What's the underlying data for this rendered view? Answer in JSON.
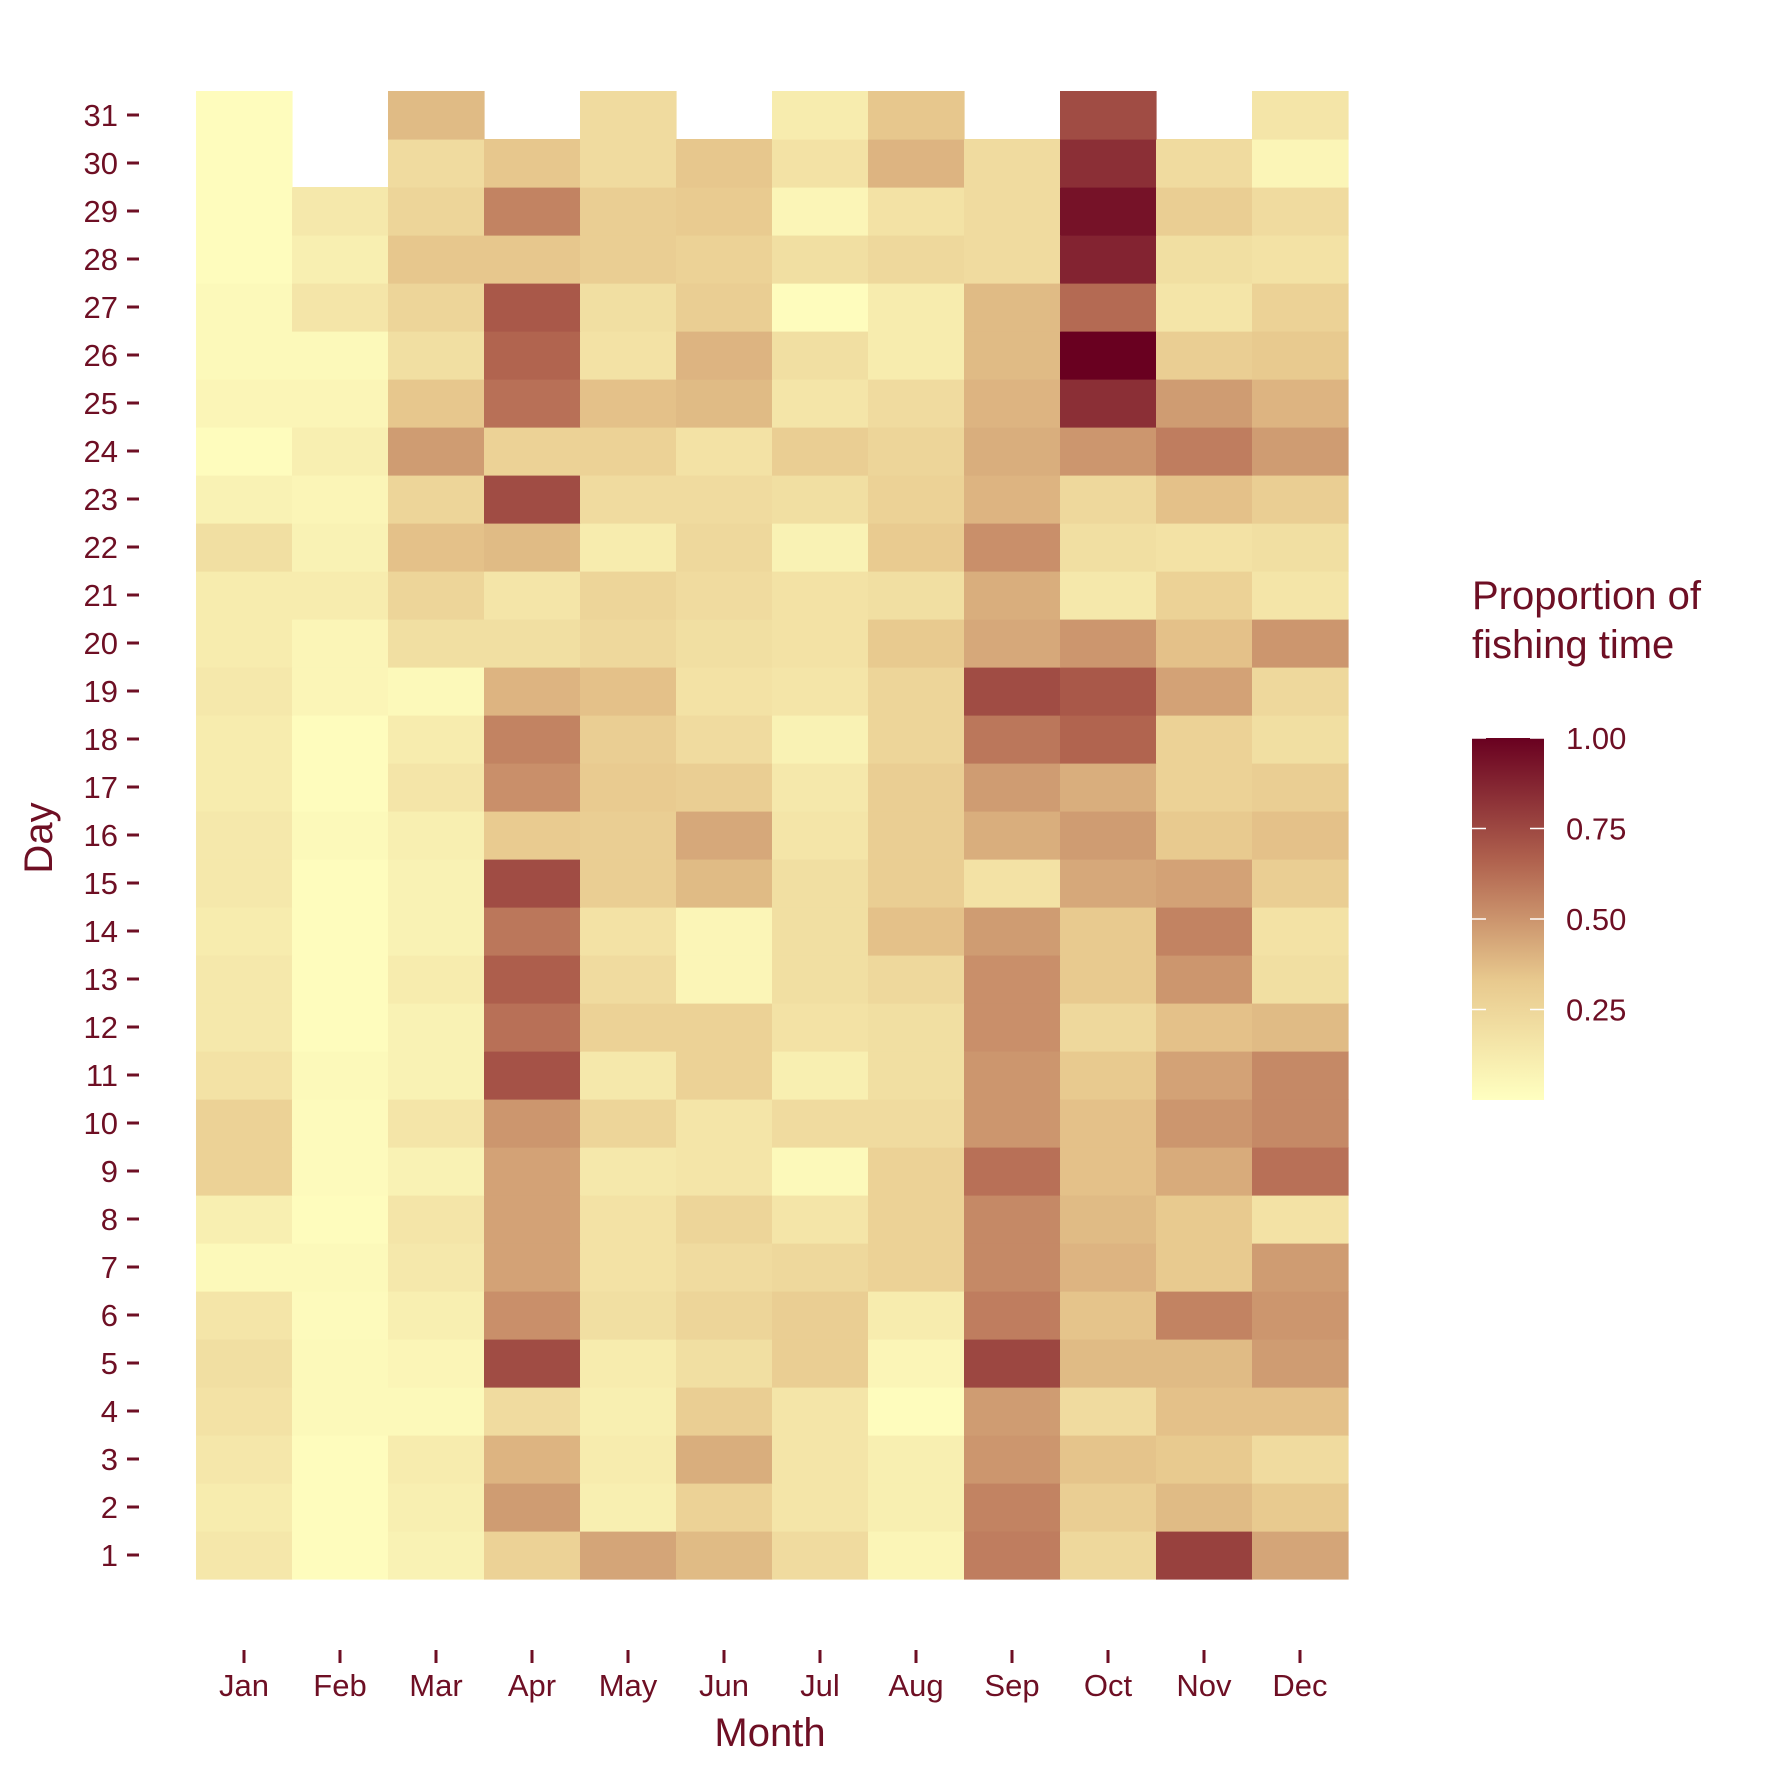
{
  "chart_data": {
    "type": "heatmap",
    "xlabel": "Month",
    "ylabel": "Day",
    "x_categories": [
      "Jan",
      "Feb",
      "Mar",
      "Apr",
      "May",
      "Jun",
      "Jul",
      "Aug",
      "Sep",
      "Oct",
      "Nov",
      "Dec"
    ],
    "y_categories": [
      "1",
      "2",
      "3",
      "4",
      "5",
      "6",
      "7",
      "8",
      "9",
      "10",
      "11",
      "12",
      "13",
      "14",
      "15",
      "16",
      "17",
      "18",
      "19",
      "20",
      "21",
      "22",
      "23",
      "24",
      "25",
      "26",
      "27",
      "28",
      "29",
      "30",
      "31"
    ],
    "legend": {
      "title_line1": "Proportion of",
      "title_line2": "fishing time",
      "ticks": [
        0.25,
        0.5,
        0.75,
        1.0
      ],
      "tick_labels": [
        "0.25",
        "0.50",
        "0.75",
        "1.00"
      ],
      "range": [
        0.0,
        1.0
      ],
      "colors": [
        "#ffffc0",
        "#e8c98e",
        "#b0624e",
        "#690020"
      ],
      "placement": "right"
    },
    "grid": false,
    "values": [
      [
        0.15,
        0.02,
        0.08,
        0.28,
        0.45,
        0.38,
        0.22,
        0.06,
        0.58,
        0.24,
        0.78,
        0.45
      ],
      [
        0.12,
        0.02,
        0.1,
        0.48,
        0.1,
        0.28,
        0.16,
        0.1,
        0.56,
        0.3,
        0.38,
        0.33
      ],
      [
        0.15,
        0.02,
        0.12,
        0.4,
        0.12,
        0.42,
        0.16,
        0.1,
        0.5,
        0.35,
        0.33,
        0.22
      ],
      [
        0.18,
        0.04,
        0.04,
        0.22,
        0.1,
        0.3,
        0.16,
        0.02,
        0.48,
        0.22,
        0.36,
        0.36
      ],
      [
        0.2,
        0.04,
        0.06,
        0.74,
        0.12,
        0.2,
        0.3,
        0.06,
        0.76,
        0.38,
        0.38,
        0.48
      ],
      [
        0.16,
        0.03,
        0.1,
        0.52,
        0.2,
        0.26,
        0.3,
        0.12,
        0.58,
        0.35,
        0.56,
        0.5
      ],
      [
        0.04,
        0.04,
        0.14,
        0.46,
        0.18,
        0.22,
        0.24,
        0.28,
        0.54,
        0.4,
        0.33,
        0.48
      ],
      [
        0.1,
        0.02,
        0.16,
        0.46,
        0.18,
        0.26,
        0.16,
        0.28,
        0.54,
        0.38,
        0.33,
        0.18
      ],
      [
        0.28,
        0.03,
        0.08,
        0.46,
        0.14,
        0.16,
        0.04,
        0.28,
        0.62,
        0.36,
        0.43,
        0.62
      ],
      [
        0.28,
        0.03,
        0.16,
        0.5,
        0.26,
        0.16,
        0.22,
        0.22,
        0.5,
        0.36,
        0.5,
        0.54
      ],
      [
        0.18,
        0.04,
        0.08,
        0.72,
        0.14,
        0.28,
        0.1,
        0.2,
        0.5,
        0.33,
        0.46,
        0.54
      ],
      [
        0.14,
        0.02,
        0.08,
        0.62,
        0.28,
        0.28,
        0.18,
        0.2,
        0.52,
        0.24,
        0.36,
        0.38
      ],
      [
        0.14,
        0.02,
        0.12,
        0.68,
        0.22,
        0.06,
        0.2,
        0.24,
        0.52,
        0.33,
        0.5,
        0.2
      ],
      [
        0.12,
        0.02,
        0.08,
        0.6,
        0.18,
        0.06,
        0.2,
        0.36,
        0.48,
        0.33,
        0.56,
        0.18
      ],
      [
        0.14,
        0.02,
        0.08,
        0.74,
        0.3,
        0.38,
        0.2,
        0.3,
        0.18,
        0.44,
        0.46,
        0.3
      ],
      [
        0.14,
        0.04,
        0.1,
        0.32,
        0.3,
        0.44,
        0.16,
        0.3,
        0.42,
        0.48,
        0.33,
        0.36
      ],
      [
        0.12,
        0.02,
        0.16,
        0.52,
        0.32,
        0.3,
        0.14,
        0.3,
        0.48,
        0.42,
        0.28,
        0.3
      ],
      [
        0.12,
        0.02,
        0.12,
        0.56,
        0.3,
        0.22,
        0.08,
        0.26,
        0.6,
        0.66,
        0.28,
        0.2
      ],
      [
        0.14,
        0.06,
        0.04,
        0.4,
        0.36,
        0.18,
        0.16,
        0.26,
        0.74,
        0.7,
        0.46,
        0.24
      ],
      [
        0.12,
        0.06,
        0.2,
        0.2,
        0.24,
        0.2,
        0.18,
        0.33,
        0.44,
        0.5,
        0.36,
        0.5
      ],
      [
        0.12,
        0.12,
        0.26,
        0.16,
        0.26,
        0.22,
        0.18,
        0.2,
        0.42,
        0.14,
        0.28,
        0.16
      ],
      [
        0.2,
        0.08,
        0.36,
        0.38,
        0.12,
        0.24,
        0.08,
        0.32,
        0.52,
        0.2,
        0.18,
        0.2
      ],
      [
        0.08,
        0.06,
        0.26,
        0.74,
        0.22,
        0.22,
        0.2,
        0.28,
        0.4,
        0.24,
        0.36,
        0.3
      ],
      [
        0.02,
        0.1,
        0.48,
        0.28,
        0.28,
        0.18,
        0.3,
        0.26,
        0.42,
        0.5,
        0.58,
        0.48
      ],
      [
        0.06,
        0.06,
        0.34,
        0.62,
        0.36,
        0.38,
        0.16,
        0.22,
        0.4,
        0.84,
        0.48,
        0.4
      ],
      [
        0.04,
        0.04,
        0.2,
        0.66,
        0.18,
        0.4,
        0.2,
        0.12,
        0.38,
        1.0,
        0.3,
        0.33
      ],
      [
        0.04,
        0.16,
        0.26,
        0.7,
        0.2,
        0.3,
        0.02,
        0.12,
        0.38,
        0.64,
        0.16,
        0.28
      ],
      [
        0.02,
        0.1,
        0.34,
        0.34,
        0.3,
        0.28,
        0.2,
        0.24,
        0.22,
        0.88,
        0.2,
        0.18
      ],
      [
        0.02,
        0.14,
        0.26,
        0.56,
        0.3,
        0.32,
        0.06,
        0.18,
        0.22,
        0.94,
        0.3,
        0.22
      ],
      [
        0.02,
        null,
        0.22,
        0.34,
        0.22,
        0.34,
        0.18,
        0.4,
        0.22,
        0.84,
        0.22,
        0.06
      ],
      [
        0.02,
        null,
        0.38,
        null,
        0.22,
        null,
        0.12,
        0.34,
        null,
        0.74,
        null,
        0.16
      ]
    ]
  }
}
